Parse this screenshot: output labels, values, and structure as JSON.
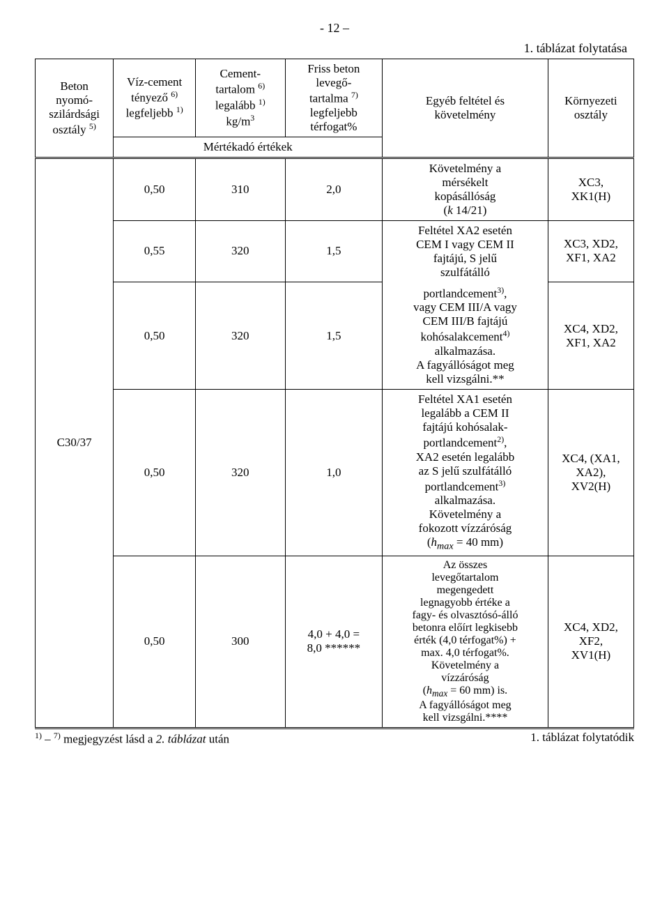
{
  "page_number": "- 12 –",
  "continuation_top": "1. táblázat folytatása",
  "headers": {
    "col1_line1": "Beton",
    "col1_line2": "nyomó-",
    "col1_line3": "szilárdsági",
    "col1_line4": "osztály",
    "col1_sup": "5)",
    "col2_line1": "Víz-cement",
    "col2_line2": "tényező",
    "col2_sup": "6)",
    "col2_line3": "legfeljebb",
    "col2_sup2": "1)",
    "col3_line1": "Cement-",
    "col3_line2": "tartalom",
    "col3_sup": "6)",
    "col3_line3": "legalább",
    "col3_sup2": "1)",
    "col3_line4": "kg/m",
    "col3_sup3": "3",
    "col4_line1": "Friss beton",
    "col4_line2": "levegő-",
    "col4_line3": "tartalma",
    "col4_sup": "7)",
    "col4_line4": "legfeljebb",
    "col4_line5": "térfogat%",
    "col5_line1": "Egyéb feltétel és",
    "col5_line2": "követelmény",
    "col6_line1": "Környezeti",
    "col6_line2": "osztály",
    "mertekado": "Mértékadó értékek"
  },
  "grade": "C30/37",
  "rows": [
    {
      "a": "0,50",
      "b": "310",
      "c": "2,0",
      "d1": "Követelmény a",
      "d2": "mérsékelt",
      "d3": "kopásállóság",
      "d4a": "(",
      "d4k": "k",
      "d4b": " 14/21)",
      "e1": "XC3,",
      "e2": "XK1(H)"
    },
    {
      "a": "0,55",
      "b": "320",
      "c": "1,5",
      "d1": "Feltétel XA2 esetén",
      "d2": "CEM I vagy CEM II",
      "d3": "fajtájú, S jelű",
      "d4": "szulfátálló",
      "e1": "XC3, XD2,",
      "e2": "XF1, XA2"
    },
    {
      "a": "0,50",
      "b": "320",
      "c": "1,5",
      "d1a": "portlandcement",
      "d1sup": "3)",
      "d1b": ",",
      "d2": "vagy CEM III/A vagy",
      "d3": "CEM III/B fajtájú",
      "d4a": "kohósalakcement",
      "d4sup": "4)",
      "d5": "alkalmazása.",
      "d6": "A fagyállóságot meg",
      "d7": "kell vizsgálni.**",
      "e1": "XC4, XD2,",
      "e2": "XF1, XA2"
    },
    {
      "a": "0,50",
      "b": "320",
      "c": "1,0",
      "d1": "Feltétel XA1 esetén",
      "d2": "legalább a CEM II",
      "d3": "fajtájú kohósalak-",
      "d4a": "portlandcement",
      "d4sup": "2)",
      "d4b": ",",
      "d5": "XA2 esetén legalább",
      "d6": "az S jelű szulfátálló",
      "d7a": "portlandcement",
      "d7sup": "3)",
      "d8": "alkalmazása.",
      "d9": "Követelmény a",
      "d10": "fokozott vízzáróság",
      "d11a": "(",
      "d11h": "h",
      "d11max": "max",
      "d11b": " = 40 mm)",
      "e1": "XC4, (XA1,",
      "e2": "XA2),",
      "e3": "XV2(H)"
    },
    {
      "a": "0,50",
      "b": "300",
      "c1": "4,0 + 4,0 =",
      "c2": "8,0 ******",
      "d1": "Az összes",
      "d2": "levegőtartalom",
      "d3": "megengedett",
      "d4": "legnagyobb értéke a",
      "d5": "fagy- és olvasztósó-álló",
      "d6": "betonra előírt legkisebb",
      "d7": "érték (4,0 térfogat%) +",
      "d8": "max. 4,0 térfogat%.",
      "d9": "Követelmény a",
      "d10": "vízzáróság",
      "d11a": "(",
      "d11h": "h",
      "d11max": "max",
      "d11b": " = 60 mm) is.",
      "d12": "A fagyállóságot meg",
      "d13": "kell vizsgálni.****",
      "e1": "XC4, XD2,",
      "e2": "XF2,",
      "e3": "XV1(H)"
    }
  ],
  "footer": {
    "left_a": "1)",
    "left_b": " – ",
    "left_c": "7)",
    "left_d": " megjegyzést lásd a ",
    "left_e": "2.",
    "left_f": " táblázat",
    "left_g": " után",
    "right": "1. táblázat folytatódik"
  }
}
